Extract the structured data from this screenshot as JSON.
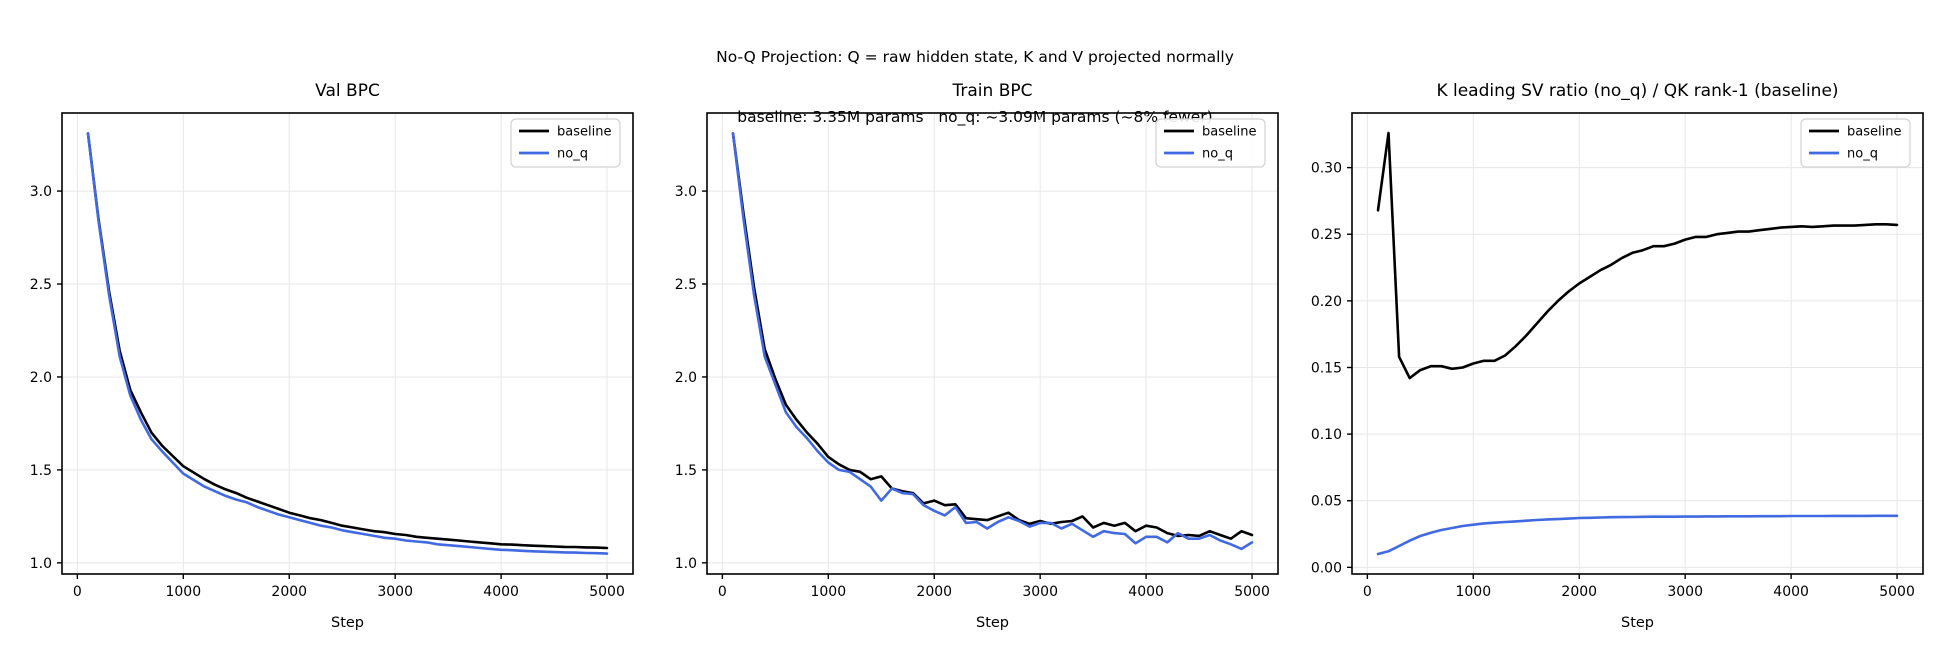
{
  "figure": {
    "suptitle_line1": "No-Q Projection: Q = raw hidden state, K and V projected normally",
    "suptitle_line2": "baseline: 3.35M params   no_q: ~3.09M params (~8% fewer)",
    "background": "#ffffff",
    "colors": {
      "baseline": "#000000",
      "no_q": "#4169e1",
      "grid": "#e7e7e7",
      "spine": "#000000",
      "legend_border": "#d2d2d2",
      "text": "#000000"
    }
  },
  "steps": [
    100,
    200,
    300,
    400,
    500,
    600,
    700,
    800,
    900,
    1000,
    1100,
    1200,
    1300,
    1400,
    1500,
    1600,
    1700,
    1800,
    1900,
    2000,
    2100,
    2200,
    2300,
    2400,
    2500,
    2600,
    2700,
    2800,
    2900,
    3000,
    3100,
    3200,
    3300,
    3400,
    3500,
    3600,
    3700,
    3800,
    3900,
    4000,
    4100,
    4200,
    4300,
    4400,
    4500,
    4600,
    4700,
    4800,
    4900,
    5000
  ],
  "legend": {
    "labels": [
      "baseline",
      "no_q"
    ]
  },
  "chart_data": [
    {
      "type": "line",
      "title": "Val BPC",
      "xlabel": "Step",
      "xlim": [
        -145,
        5245
      ],
      "ylim": [
        0.94,
        3.42
      ],
      "xticks": [
        0,
        1000,
        2000,
        3000,
        4000,
        5000
      ],
      "xtick_labels": [
        "0",
        "1000",
        "2000",
        "3000",
        "4000",
        "5000"
      ],
      "yticks": [
        1.0,
        1.5,
        2.0,
        2.5,
        3.0
      ],
      "ytick_labels": [
        "1.0",
        "1.5",
        "2.0",
        "2.5",
        "3.0"
      ],
      "grid": true,
      "legend_position": "upper right",
      "series": [
        {
          "name": "baseline",
          "values": [
            3.31,
            2.85,
            2.46,
            2.14,
            1.93,
            1.81,
            1.7,
            1.63,
            1.575,
            1.52,
            1.485,
            1.45,
            1.42,
            1.395,
            1.375,
            1.35,
            1.33,
            1.31,
            1.29,
            1.27,
            1.255,
            1.24,
            1.23,
            1.215,
            1.2,
            1.19,
            1.18,
            1.17,
            1.165,
            1.155,
            1.15,
            1.14,
            1.135,
            1.13,
            1.125,
            1.12,
            1.115,
            1.11,
            1.105,
            1.1,
            1.098,
            1.095,
            1.092,
            1.09,
            1.088,
            1.086,
            1.085,
            1.083,
            1.082,
            1.08
          ]
        },
        {
          "name": "no_q",
          "values": [
            3.31,
            2.84,
            2.44,
            2.11,
            1.9,
            1.77,
            1.665,
            1.6,
            1.54,
            1.48,
            1.445,
            1.41,
            1.385,
            1.36,
            1.34,
            1.325,
            1.3,
            1.28,
            1.26,
            1.245,
            1.23,
            1.215,
            1.2,
            1.19,
            1.175,
            1.165,
            1.155,
            1.145,
            1.135,
            1.13,
            1.12,
            1.115,
            1.11,
            1.1,
            1.095,
            1.09,
            1.085,
            1.08,
            1.075,
            1.07,
            1.068,
            1.065,
            1.062,
            1.06,
            1.058,
            1.056,
            1.055,
            1.053,
            1.052,
            1.05
          ]
        }
      ]
    },
    {
      "type": "line",
      "title": "Train BPC",
      "xlabel": "Step",
      "xlim": [
        -145,
        5245
      ],
      "ylim": [
        0.94,
        3.42
      ],
      "xticks": [
        0,
        1000,
        2000,
        3000,
        4000,
        5000
      ],
      "xtick_labels": [
        "0",
        "1000",
        "2000",
        "3000",
        "4000",
        "5000"
      ],
      "yticks": [
        1.0,
        1.5,
        2.0,
        2.5,
        3.0
      ],
      "ytick_labels": [
        "1.0",
        "1.5",
        "2.0",
        "2.5",
        "3.0"
      ],
      "grid": true,
      "legend_position": "upper right",
      "series": [
        {
          "name": "baseline",
          "values": [
            3.31,
            2.88,
            2.48,
            2.15,
            1.99,
            1.85,
            1.77,
            1.7,
            1.64,
            1.57,
            1.53,
            1.5,
            1.49,
            1.45,
            1.465,
            1.4,
            1.385,
            1.375,
            1.32,
            1.335,
            1.31,
            1.315,
            1.24,
            1.235,
            1.23,
            1.25,
            1.27,
            1.23,
            1.21,
            1.225,
            1.21,
            1.22,
            1.225,
            1.25,
            1.19,
            1.215,
            1.2,
            1.215,
            1.17,
            1.2,
            1.19,
            1.16,
            1.145,
            1.15,
            1.145,
            1.17,
            1.15,
            1.13,
            1.17,
            1.15
          ]
        },
        {
          "name": "no_q",
          "values": [
            3.31,
            2.85,
            2.44,
            2.11,
            1.96,
            1.81,
            1.73,
            1.67,
            1.6,
            1.54,
            1.5,
            1.49,
            1.45,
            1.41,
            1.335,
            1.4,
            1.375,
            1.37,
            1.31,
            1.28,
            1.255,
            1.3,
            1.215,
            1.22,
            1.185,
            1.22,
            1.245,
            1.225,
            1.195,
            1.215,
            1.215,
            1.185,
            1.21,
            1.175,
            1.14,
            1.17,
            1.16,
            1.155,
            1.105,
            1.14,
            1.14,
            1.11,
            1.16,
            1.13,
            1.13,
            1.15,
            1.12,
            1.1,
            1.075,
            1.11
          ]
        }
      ]
    },
    {
      "type": "line",
      "title": "K leading SV ratio (no_q) / QK rank-1 (baseline)",
      "xlabel": "Step",
      "xlim": [
        -145,
        5245
      ],
      "ylim": [
        -0.005,
        0.341
      ],
      "xticks": [
        0,
        1000,
        2000,
        3000,
        4000,
        5000
      ],
      "xtick_labels": [
        "0",
        "1000",
        "2000",
        "3000",
        "4000",
        "5000"
      ],
      "yticks": [
        0.0,
        0.05,
        0.1,
        0.15,
        0.2,
        0.25,
        0.3
      ],
      "ytick_labels": [
        "0.00",
        "0.05",
        "0.10",
        "0.15",
        "0.20",
        "0.25",
        "0.30"
      ],
      "grid": true,
      "legend_position": "upper right",
      "series": [
        {
          "name": "baseline",
          "values": [
            0.268,
            0.326,
            0.158,
            0.142,
            0.148,
            0.151,
            0.151,
            0.149,
            0.15,
            0.153,
            0.155,
            0.155,
            0.159,
            0.166,
            0.174,
            0.183,
            0.192,
            0.2,
            0.207,
            0.213,
            0.218,
            0.223,
            0.227,
            0.232,
            0.236,
            0.238,
            0.241,
            0.241,
            0.243,
            0.246,
            0.248,
            0.248,
            0.25,
            0.251,
            0.252,
            0.252,
            0.253,
            0.254,
            0.255,
            0.2555,
            0.256,
            0.2555,
            0.256,
            0.2565,
            0.2565,
            0.2565,
            0.257,
            0.2575,
            0.2575,
            0.257
          ]
        },
        {
          "name": "no_q",
          "values": [
            0.01,
            0.012,
            0.016,
            0.02,
            0.0235,
            0.026,
            0.028,
            0.0295,
            0.031,
            0.032,
            0.033,
            0.0335,
            0.034,
            0.0345,
            0.035,
            0.0355,
            0.036,
            0.0362,
            0.0366,
            0.037,
            0.0372,
            0.0374,
            0.0376,
            0.0377,
            0.0378,
            0.0379,
            0.038,
            0.038,
            0.038,
            0.0381,
            0.0381,
            0.0382,
            0.0382,
            0.0383,
            0.0383,
            0.0383,
            0.0384,
            0.0384,
            0.0384,
            0.0385,
            0.0385,
            0.0385,
            0.0385,
            0.0386,
            0.0386,
            0.0386,
            0.0386,
            0.0387,
            0.0387,
            0.0387
          ]
        }
      ]
    }
  ]
}
